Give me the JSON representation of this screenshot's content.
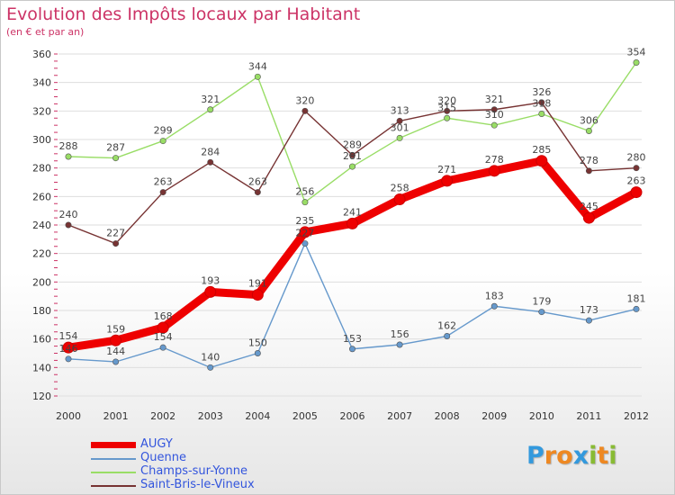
{
  "chart_data": {
    "type": "line",
    "title": "Evolution des Impôts locaux par Habitant",
    "subtitle": "(en € et par an)",
    "xlabel": "",
    "ylabel": "",
    "x": [
      "2000",
      "2001",
      "2002",
      "2003",
      "2004",
      "2005",
      "2006",
      "2007",
      "2008",
      "2009",
      "2010",
      "2011",
      "2012"
    ],
    "ylim": [
      120,
      360
    ],
    "yticks": [
      120,
      140,
      160,
      180,
      200,
      220,
      240,
      260,
      280,
      300,
      320,
      340,
      360
    ],
    "grid": true,
    "legend_position": "bottom-left",
    "series": [
      {
        "name": "AUGY",
        "color": "#ee0000",
        "values": [
          154,
          159,
          168,
          193,
          191,
          235,
          241,
          258,
          271,
          278,
          285,
          245,
          263
        ],
        "labels": [
          "154",
          "159",
          "168",
          "193",
          "191",
          "235",
          "241",
          "258",
          "271",
          "278",
          "285",
          "245",
          "263"
        ]
      },
      {
        "name": "Quenne",
        "color": "#6699cc",
        "values": [
          146,
          144,
          154,
          140,
          150,
          227,
          153,
          156,
          162,
          183,
          179,
          173,
          181
        ],
        "labels": [
          "146",
          "144",
          "154",
          "140",
          "150",
          "227",
          "153",
          "156",
          "162",
          "183",
          "179",
          "173",
          "181"
        ]
      },
      {
        "name": "Champs-sur-Yonne",
        "color": "#99dd66",
        "values": [
          288,
          287,
          299,
          321,
          344,
          256,
          281,
          301,
          315,
          310,
          318,
          306,
          354
        ],
        "labels": [
          "288",
          "287",
          "299",
          "321",
          "344",
          "256",
          "281",
          "301",
          "315",
          "310",
          "318",
          "306",
          "354"
        ]
      },
      {
        "name": "Saint-Bris-le-Vineux",
        "color": "#773333",
        "values": [
          240,
          227,
          263,
          284,
          263,
          320,
          289,
          313,
          320,
          321,
          326,
          278,
          280
        ],
        "labels": [
          "240",
          "227",
          "263",
          "284",
          "263",
          "320",
          "289",
          "313",
          "320",
          "321",
          "326",
          "278",
          "280"
        ]
      }
    ]
  },
  "logo": {
    "letters": [
      {
        "ch": "P",
        "color": "#3399dd"
      },
      {
        "ch": "r",
        "color": "#ee8822"
      },
      {
        "ch": "o",
        "color": "#ee8822"
      },
      {
        "ch": "x",
        "color": "#3399dd"
      },
      {
        "ch": "i",
        "color": "#88bb33"
      },
      {
        "ch": "t",
        "color": "#ee8822"
      },
      {
        "ch": "i",
        "color": "#88bb33"
      }
    ]
  }
}
